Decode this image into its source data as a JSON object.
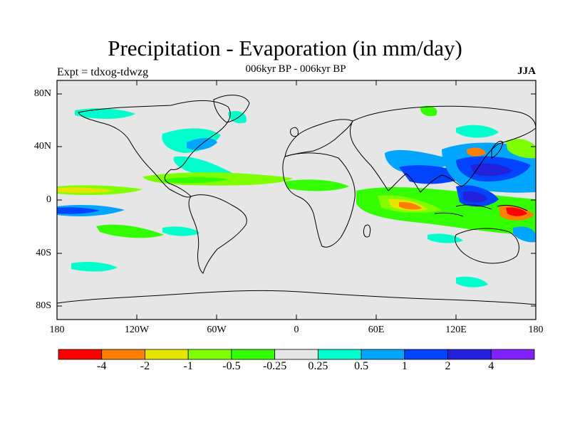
{
  "header": {
    "title": "Precipitation - Evaporation (in mm/day)",
    "subtitle": "006kyr BP - 006kyr BP",
    "expt": "Expt = tdxog-tdwzg",
    "season": "JJA"
  },
  "axes": {
    "lat_ticks": [
      "80N",
      "40N",
      "0",
      "40S",
      "80S"
    ],
    "lon_ticks": [
      "180",
      "120W",
      "60W",
      "0",
      "60E",
      "120E",
      "180"
    ]
  },
  "colorbar": {
    "colors": [
      "#ff0000",
      "#ff7f00",
      "#e5e500",
      "#7fff00",
      "#33ff00",
      "#e6e6e6",
      "#00ffcc",
      "#00a5ff",
      "#0044ff",
      "#2222dd",
      "#7f22ff"
    ],
    "labels": [
      "-4",
      "-2",
      "-1",
      "-0.5",
      "-0.25",
      "0.25",
      "0.5",
      "1",
      "2",
      "4"
    ]
  },
  "map_style": {
    "background": "#e6e6e6",
    "coast_color": "#000000"
  }
}
